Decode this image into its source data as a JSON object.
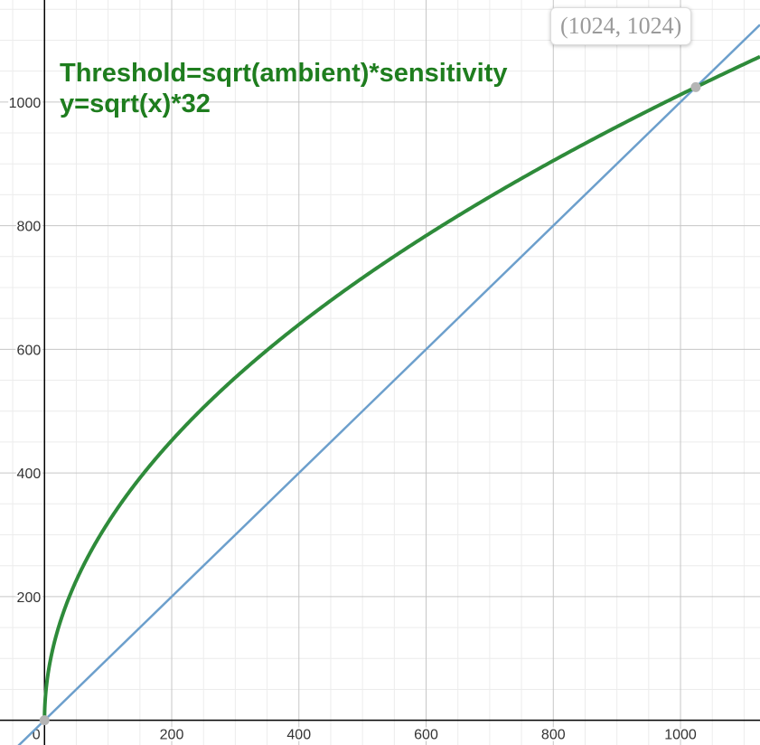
{
  "chart_data": {
    "type": "line",
    "xlim": [
      -70,
      1125
    ],
    "ylim": [
      -40,
      1165
    ],
    "grid": true,
    "x_ticks": [
      200,
      400,
      600,
      800,
      1000
    ],
    "y_ticks": [
      200,
      400,
      600,
      800,
      1000
    ],
    "origin_label": "0",
    "minor_step": 50,
    "annotation_lines": [
      "Threshold=sqrt(ambient)*sensitivity",
      "y=sqrt(x)*32"
    ],
    "series": [
      {
        "expression": "y = 32*sqrt(x)",
        "color": "#2e8b3a",
        "x_range": [
          0,
          1125
        ]
      },
      {
        "expression": "y = x",
        "color": "#6c9fcc",
        "x_range": [
          -70,
          1125
        ]
      }
    ],
    "points": [
      {
        "x": 0,
        "y": 0,
        "color": "#b5b5b5"
      },
      {
        "x": 1024,
        "y": 1024,
        "color": "#b5b5b5",
        "label": "(1024, 1024)"
      }
    ]
  },
  "colors": {
    "grid_major": "#c6c6c6",
    "grid_minor": "#ececec",
    "axis": "#000000",
    "annotation": "#1e7d1e"
  }
}
